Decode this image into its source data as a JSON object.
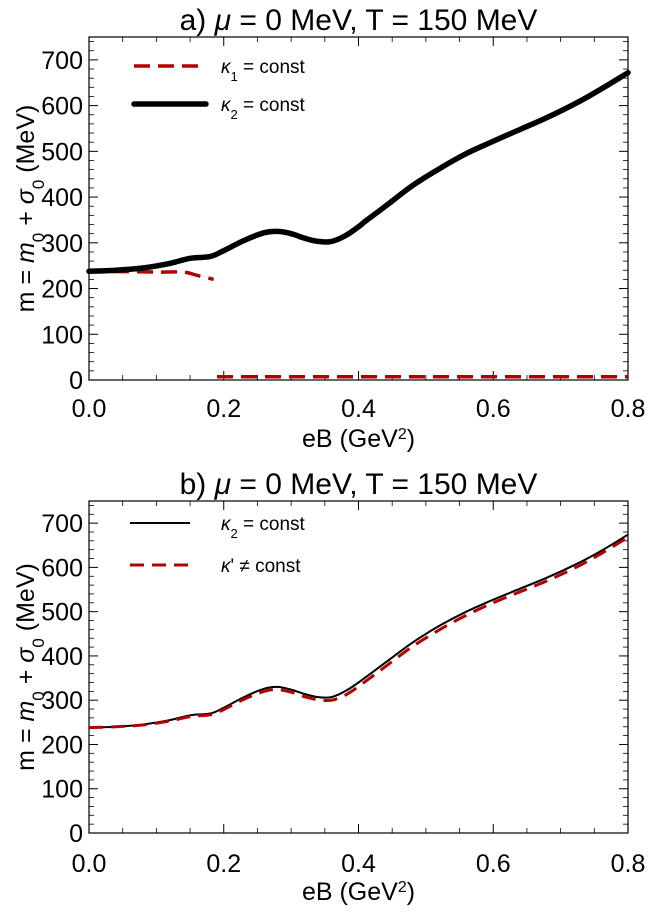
{
  "chart_data": [
    {
      "type": "line",
      "title": "a) μ = 0 MeV, T = 150 MeV",
      "title_parts": {
        "prefix": "a) ",
        "mu": "μ",
        "rest": " = 0 MeV, T = 150 MeV"
      },
      "xlabel": "eB (GeV²)",
      "xlabel_parts": {
        "main": "eB (GeV",
        "sup": "2",
        "close": ")"
      },
      "ylabel": "m = m0 + σ0 (MeV)",
      "ylabel_parts": {
        "a": "m = ",
        "m": "m",
        "sub0": "0",
        "plus": " + ",
        "sigma": "σ",
        "sub1": "0",
        "unit": " (MeV)"
      },
      "xlim": [
        0,
        0.8
      ],
      "ylim": [
        0,
        750
      ],
      "xticks": [
        0.0,
        0.2,
        0.4,
        0.6,
        0.8
      ],
      "xtick_labels": [
        "0.0",
        "0.2",
        "0.4",
        "0.6",
        "0.8"
      ],
      "yticks": [
        0,
        100,
        200,
        300,
        400,
        500,
        600,
        700
      ],
      "ytick_labels": [
        "0",
        "100",
        "200",
        "300",
        "400",
        "500",
        "600",
        "700"
      ],
      "grid": false,
      "legend_position": "top-left",
      "series": [
        {
          "name": "κ1 = const",
          "legend_parts": {
            "sym": "κ",
            "sub": "1",
            "rest": " = const"
          },
          "color": "#b30000",
          "style": "dashed",
          "segments": [
            {
              "x": [
                0.0,
                0.05,
                0.1,
                0.14,
                0.16,
                0.185
              ],
              "y": [
                237,
                237,
                236,
                236,
                229,
                220
              ]
            },
            {
              "x": [
                0.19,
                0.8
              ],
              "y": [
                7,
                7
              ]
            }
          ]
        },
        {
          "name": "κ2 = const",
          "legend_parts": {
            "sym": "κ",
            "sub": "2",
            "rest": " = const"
          },
          "color": "#000000",
          "style": "thick",
          "x": [
            0.0,
            0.04,
            0.08,
            0.12,
            0.15,
            0.18,
            0.2,
            0.23,
            0.26,
            0.28,
            0.3,
            0.32,
            0.34,
            0.36,
            0.38,
            0.4,
            0.41,
            0.44,
            0.48,
            0.52,
            0.56,
            0.6,
            0.64,
            0.68,
            0.72,
            0.76,
            0.8
          ],
          "y": [
            238,
            240,
            245,
            255,
            266,
            270,
            283,
            305,
            322,
            325,
            320,
            310,
            303,
            303,
            315,
            335,
            347,
            380,
            425,
            462,
            495,
            522,
            548,
            574,
            603,
            636,
            672
          ]
        }
      ]
    },
    {
      "type": "line",
      "title": "b) μ = 0 MeV, T = 150 MeV",
      "title_parts": {
        "prefix": "b) ",
        "mu": "μ",
        "rest": " = 0 MeV, T = 150 MeV"
      },
      "xlabel": "eB (GeV²)",
      "xlabel_parts": {
        "main": "eB (GeV",
        "sup": "2",
        "close": ")"
      },
      "ylabel": "m = m0 + σ0 (MeV)",
      "ylabel_parts": {
        "a": "m = ",
        "m": "m",
        "sub0": "0",
        "plus": " + ",
        "sigma": "σ",
        "sub1": "0",
        "unit": " (MeV)"
      },
      "xlim": [
        0,
        0.8
      ],
      "ylim": [
        0,
        750
      ],
      "xticks": [
        0.0,
        0.2,
        0.4,
        0.6,
        0.8
      ],
      "xtick_labels": [
        "0.0",
        "0.2",
        "0.4",
        "0.6",
        "0.8"
      ],
      "yticks": [
        0,
        100,
        200,
        300,
        400,
        500,
        600,
        700
      ],
      "ytick_labels": [
        "0",
        "100",
        "200",
        "300",
        "400",
        "500",
        "600",
        "700"
      ],
      "grid": false,
      "legend_position": "top-left",
      "series": [
        {
          "name": "κ2 = const",
          "legend_parts": {
            "sym": "κ",
            "sub": "2",
            "rest": " = const"
          },
          "color": "#000000",
          "style": "solid",
          "x": [
            0.0,
            0.04,
            0.08,
            0.12,
            0.15,
            0.18,
            0.2,
            0.23,
            0.26,
            0.28,
            0.3,
            0.32,
            0.34,
            0.36,
            0.38,
            0.4,
            0.44,
            0.48,
            0.52,
            0.56,
            0.6,
            0.64,
            0.68,
            0.72,
            0.76,
            0.8
          ],
          "y": [
            238,
            240,
            245,
            255,
            266,
            270,
            283,
            307,
            326,
            330,
            324,
            314,
            307,
            307,
            320,
            340,
            385,
            430,
            468,
            500,
            527,
            552,
            577,
            605,
            637,
            674
          ]
        },
        {
          "name": "κ' ≠ const",
          "legend_parts": {
            "sym": "κ",
            "sub": "",
            "rest": "' ≠ const"
          },
          "color": "#b30000",
          "style": "dashed",
          "x": [
            0.0,
            0.04,
            0.08,
            0.12,
            0.15,
            0.18,
            0.2,
            0.23,
            0.26,
            0.28,
            0.3,
            0.32,
            0.34,
            0.36,
            0.38,
            0.4,
            0.44,
            0.48,
            0.52,
            0.56,
            0.6,
            0.64,
            0.68,
            0.72,
            0.76,
            0.8
          ],
          "y": [
            238,
            240,
            244,
            253,
            263,
            267,
            279,
            302,
            320,
            324,
            318,
            308,
            301,
            300,
            311,
            331,
            376,
            421,
            459,
            492,
            520,
            545,
            570,
            598,
            631,
            668
          ]
        }
      ]
    }
  ]
}
